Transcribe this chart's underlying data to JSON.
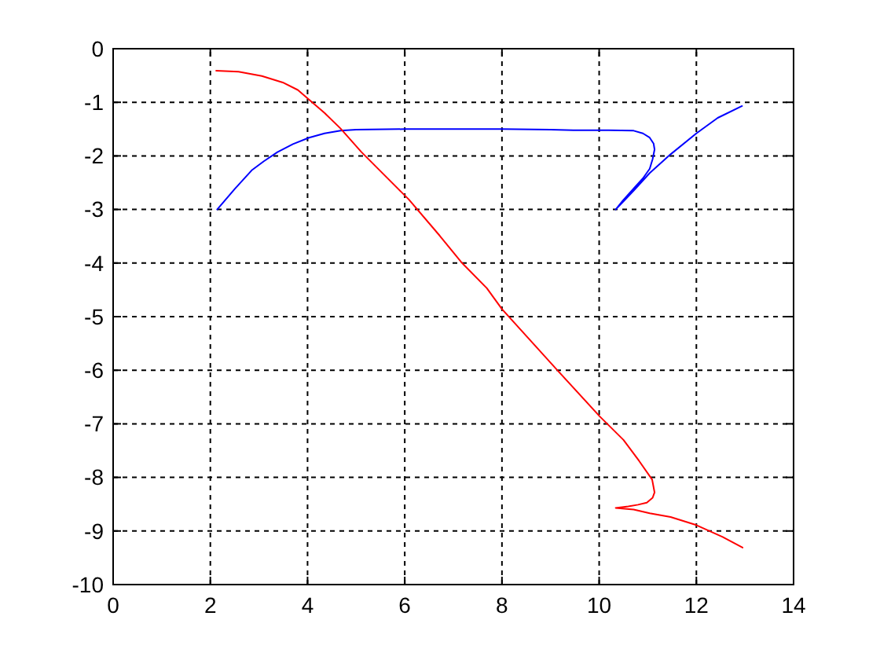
{
  "chart_data": {
    "type": "line",
    "xlim": [
      0,
      14
    ],
    "ylim": [
      -10,
      0
    ],
    "xticks": [
      0,
      2,
      4,
      6,
      8,
      10,
      12,
      14
    ],
    "yticks": [
      -10,
      -9,
      -8,
      -7,
      -6,
      -5,
      -4,
      -3,
      -2,
      -1,
      0
    ],
    "grid": true,
    "series": [
      {
        "color": "#0000ff",
        "x": [
          2.14,
          2.5,
          2.85,
          3.1,
          3.38,
          3.7,
          4.03,
          4.35,
          4.68,
          5.0,
          6.0,
          7.0,
          8.0,
          9.0,
          9.47,
          10.2,
          10.71,
          10.9,
          11.04,
          11.12,
          11.14,
          11.1,
          11.04,
          10.9,
          10.71,
          10.5,
          10.34,
          10.7,
          11.04,
          11.47,
          12.0,
          12.44,
          12.94
        ],
        "values": [
          -3.0,
          -2.62,
          -2.27,
          -2.1,
          -1.93,
          -1.78,
          -1.66,
          -1.58,
          -1.53,
          -1.51,
          -1.5,
          -1.5,
          -1.5,
          -1.51,
          -1.52,
          -1.52,
          -1.53,
          -1.58,
          -1.66,
          -1.77,
          -1.88,
          -2.06,
          -2.24,
          -2.42,
          -2.61,
          -2.82,
          -3.0,
          -2.66,
          -2.32,
          -1.97,
          -1.58,
          -1.29,
          -1.07
        ]
      },
      {
        "color": "#ff0000",
        "x": [
          2.12,
          2.58,
          3.06,
          3.49,
          3.8,
          4.03,
          4.35,
          4.68,
          5.11,
          6.08,
          6.72,
          7.16,
          7.69,
          8.0,
          9.15,
          10.01,
          10.5,
          10.82,
          11.09,
          11.14,
          11.1,
          10.98,
          10.8,
          10.6,
          10.34,
          10.71,
          11.04,
          11.47,
          12.0,
          12.54,
          12.95
        ],
        "values": [
          -0.41,
          -0.43,
          -0.51,
          -0.63,
          -0.77,
          -0.95,
          -1.2,
          -1.49,
          -1.93,
          -2.81,
          -3.49,
          -3.98,
          -4.47,
          -4.86,
          -6.01,
          -6.86,
          -7.3,
          -7.69,
          -8.04,
          -8.28,
          -8.38,
          -8.47,
          -8.51,
          -8.54,
          -8.57,
          -8.6,
          -8.67,
          -8.74,
          -8.89,
          -9.11,
          -9.31
        ]
      }
    ]
  }
}
